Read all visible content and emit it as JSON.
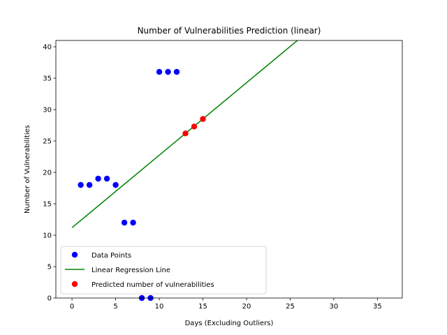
{
  "chart_data": {
    "type": "scatter",
    "title": "Number of Vulnerabilities Prediction (linear)",
    "xlabel": "Days (Excluding Outliers)",
    "ylabel": "Number of Vulnerabilities",
    "xlim": [
      -1.85,
      37.85
    ],
    "ylim": [
      0,
      41
    ],
    "xticks": [
      0,
      5,
      10,
      15,
      20,
      25,
      30,
      35
    ],
    "yticks": [
      0,
      5,
      10,
      15,
      20,
      25,
      30,
      35,
      40
    ],
    "grid": false,
    "legend_position": "lower-left",
    "series": [
      {
        "name": "Data Points",
        "kind": "scatter",
        "color": "#0000ff",
        "points": [
          {
            "x": 1,
            "y": 18
          },
          {
            "x": 2,
            "y": 18
          },
          {
            "x": 3,
            "y": 19
          },
          {
            "x": 4,
            "y": 19
          },
          {
            "x": 5,
            "y": 18
          },
          {
            "x": 6,
            "y": 12
          },
          {
            "x": 7,
            "y": 12
          },
          {
            "x": 8,
            "y": 0
          },
          {
            "x": 9,
            "y": 0
          },
          {
            "x": 10,
            "y": 36
          },
          {
            "x": 11,
            "y": 36
          },
          {
            "x": 12,
            "y": 36
          }
        ]
      },
      {
        "name": "Linear Regression Line",
        "kind": "line",
        "color": "#008000",
        "points": [
          {
            "x": 0,
            "y": 11.2
          },
          {
            "x": 26,
            "y": 41.2
          }
        ]
      },
      {
        "name": "Predicted number of vulnerabilities",
        "kind": "scatter",
        "color": "#ff0000",
        "points": [
          {
            "x": 13,
            "y": 26.2
          },
          {
            "x": 14,
            "y": 27.3
          },
          {
            "x": 15,
            "y": 28.5
          }
        ]
      }
    ]
  }
}
